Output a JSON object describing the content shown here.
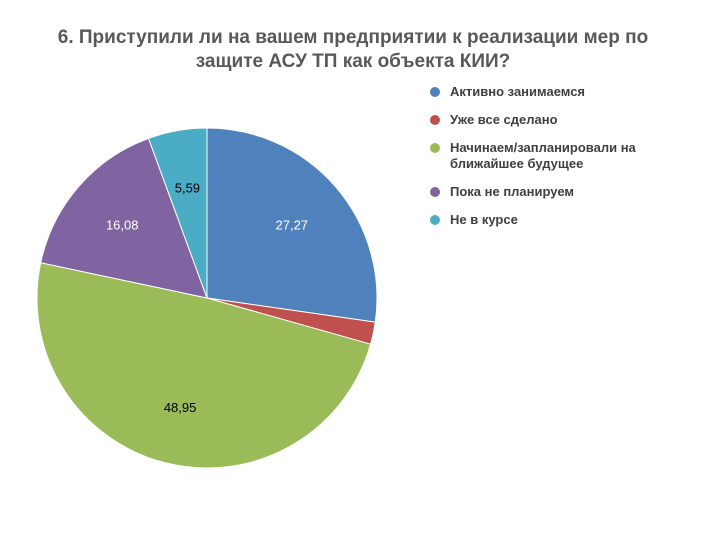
{
  "title_lines": [
    "6. Приступили ли на вашем предприятии к реализации мер по",
    "защите АСУ ТП как объекта КИИ?"
  ],
  "chart_data": {
    "type": "pie",
    "title": "6. Приступили ли на вашем предприятии к реализации мер по защите АСУ ТП как объекта КИИ?",
    "legend_position": "right",
    "slices": [
      {
        "name": "Активно занимаемся",
        "legend_label": "Активно занимаемся",
        "value": 27.27,
        "label": "27,27",
        "color": "#4f81bd",
        "label_color": "#ffffff"
      },
      {
        "name": "Уже все сделано",
        "legend_label": "Уже все сделано",
        "value": 2.11,
        "label": "",
        "color": "#c0504d",
        "label_color": "#ffffff"
      },
      {
        "name": "Начинаем/запланировали на ближайшее будущее",
        "legend_label": "Начинаем/запланировали на\nближайшее будущее",
        "value": 48.95,
        "label": "48,95",
        "color": "#9bbb59",
        "label_color": "#000000"
      },
      {
        "name": "Пока не планируем",
        "legend_label": "Пока не планируем",
        "value": 16.08,
        "label": "16,08",
        "color": "#8064a2",
        "label_color": "#ffffff"
      },
      {
        "name": "Не в курсе",
        "legend_label": "Не в курсе",
        "value": 5.59,
        "label": "5,59",
        "color": "#4bacc6",
        "label_color": "#000000"
      }
    ]
  }
}
